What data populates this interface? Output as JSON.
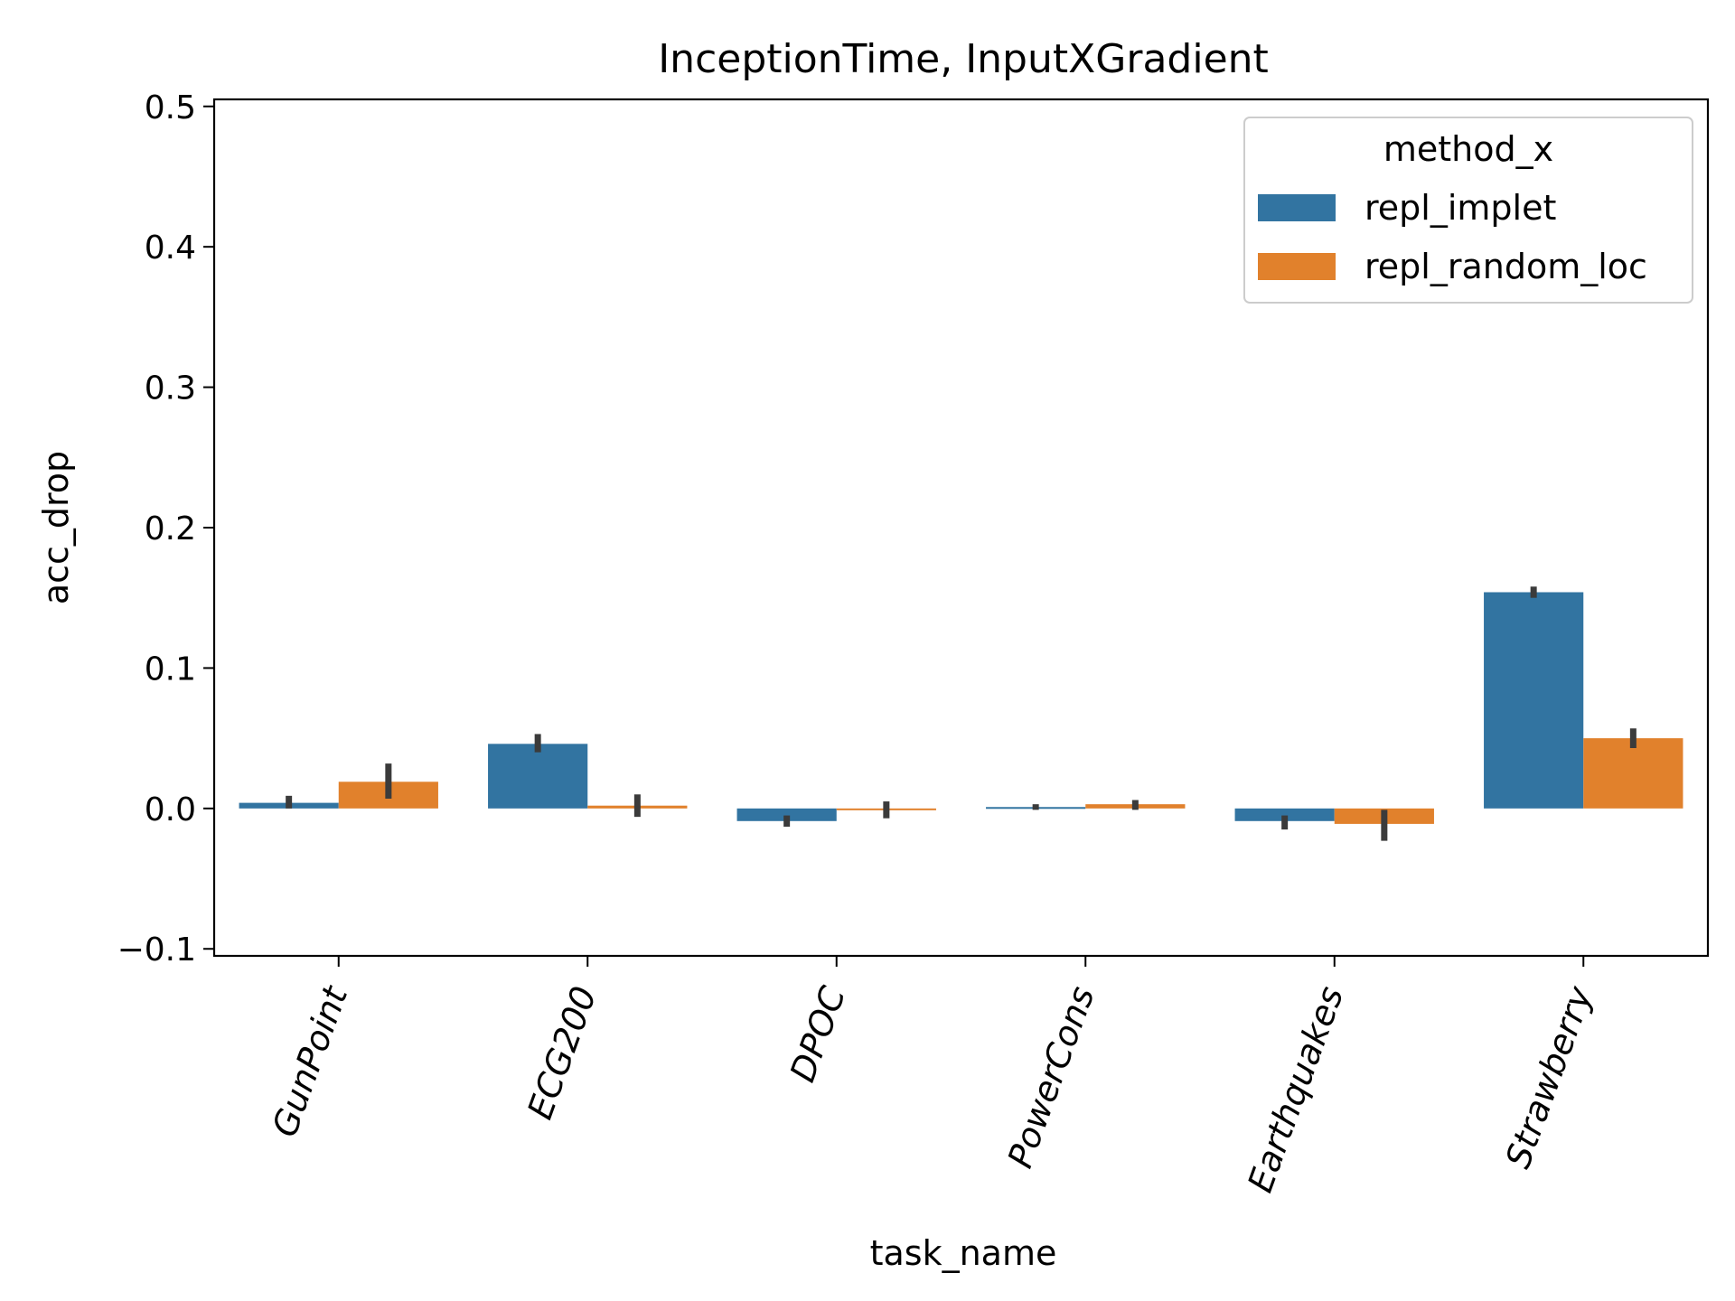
{
  "chart_data": {
    "type": "bar",
    "title": "InceptionTime, InputXGradient",
    "xlabel": "task_name",
    "ylabel": "acc_drop",
    "categories": [
      "GunPoint",
      "ECG200",
      "DPOC",
      "PowerCons",
      "Earthquakes",
      "Strawberry"
    ],
    "ylim": [
      -0.105,
      0.505
    ],
    "yticks": [
      -0.1,
      0.0,
      0.1,
      0.2,
      0.3,
      0.4,
      0.5
    ],
    "ytick_labels": [
      "−0.1",
      "0.0",
      "0.1",
      "0.2",
      "0.3",
      "0.4",
      "0.5"
    ],
    "legend": {
      "title": "method_x",
      "position": "top-right"
    },
    "grid": false,
    "series": [
      {
        "name": "repl_implet",
        "color": "#3274a1",
        "values": [
          0.004,
          0.046,
          -0.009,
          0.001,
          -0.009,
          0.154
        ],
        "error": [
          [
            0.0,
            0.009
          ],
          [
            0.04,
            0.053
          ],
          [
            -0.013,
            -0.005
          ],
          [
            -0.001,
            0.003
          ],
          [
            -0.015,
            -0.005
          ],
          [
            0.15,
            0.158
          ]
        ]
      },
      {
        "name": "repl_random_loc",
        "color": "#e1812c",
        "values": [
          0.019,
          0.002,
          -0.0005,
          0.003,
          -0.011,
          0.05
        ],
        "error": [
          [
            0.007,
            0.032
          ],
          [
            -0.006,
            0.01
          ],
          [
            -0.007,
            0.005
          ],
          [
            -0.001,
            0.006
          ],
          [
            -0.023,
            -0.001
          ],
          [
            0.043,
            0.057
          ]
        ]
      }
    ],
    "error_bar_color": "#3b3b3b"
  }
}
